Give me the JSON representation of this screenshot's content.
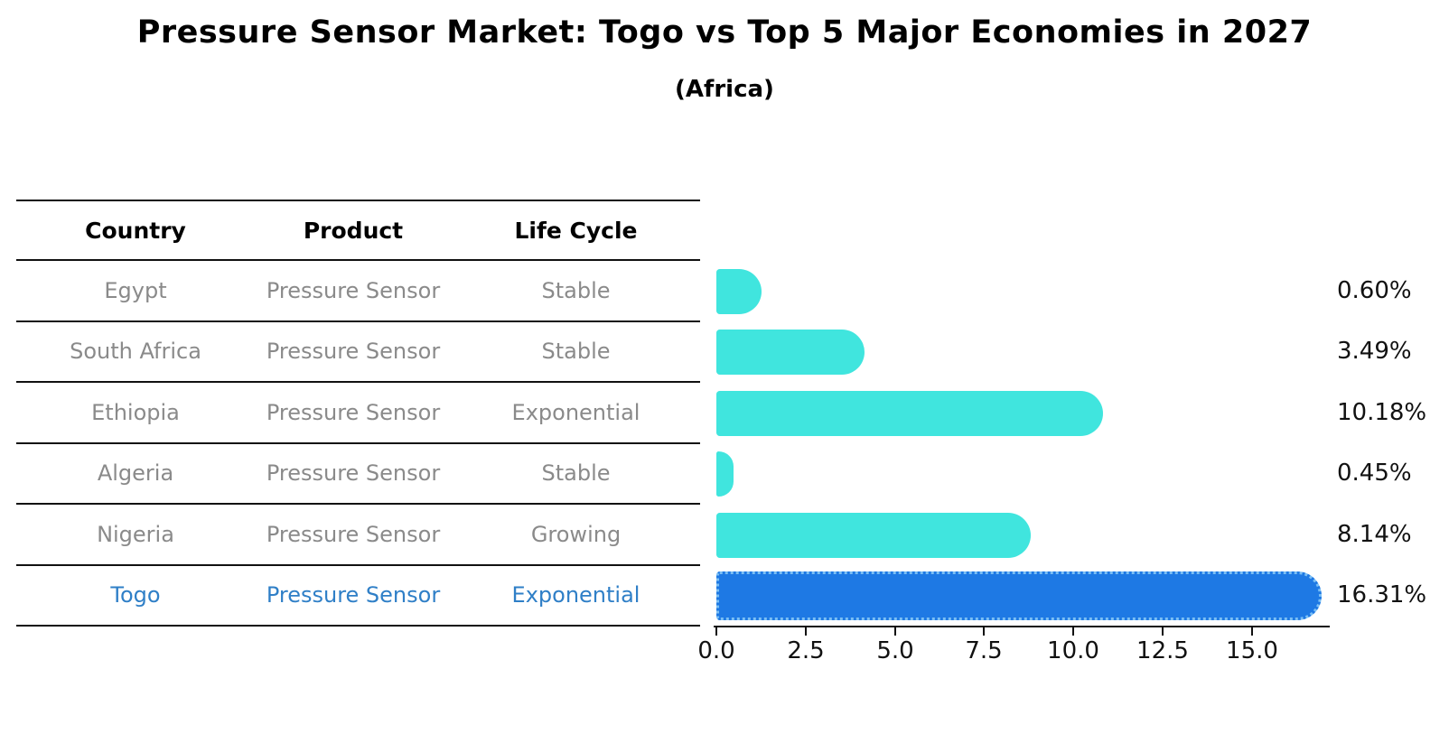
{
  "title": "Pressure Sensor Market: Togo vs Top 5 Major Economies in 2027",
  "subtitle": "(Africa)",
  "table": {
    "headers": [
      "Country",
      "Product",
      "Life Cycle"
    ],
    "rows": [
      {
        "country": "Egypt",
        "product": "Pressure Sensor",
        "life_cycle": "Stable",
        "highlighted": false
      },
      {
        "country": "South Africa",
        "product": "Pressure Sensor",
        "life_cycle": "Stable",
        "highlighted": false
      },
      {
        "country": "Ethiopia",
        "product": "Pressure Sensor",
        "life_cycle": "Exponential",
        "highlighted": false
      },
      {
        "country": "Algeria",
        "product": "Pressure Sensor",
        "life_cycle": "Stable",
        "highlighted": false
      },
      {
        "country": "Nigeria",
        "product": "Pressure Sensor",
        "life_cycle": "Growing",
        "highlighted": false
      },
      {
        "country": "Togo",
        "product": "Pressure Sensor",
        "life_cycle": "Exponential",
        "highlighted": true
      }
    ]
  },
  "chart_data": {
    "type": "bar",
    "orientation": "horizontal",
    "title": "Pressure Sensor Market: Togo vs Top 5 Major Economies in 2027",
    "subtitle": "(Africa)",
    "categories": [
      "Egypt",
      "South Africa",
      "Ethiopia",
      "Algeria",
      "Nigeria",
      "Togo"
    ],
    "values": [
      0.6,
      3.49,
      10.18,
      0.45,
      8.14,
      16.31
    ],
    "value_labels": [
      "0.60%",
      "3.49%",
      "10.18%",
      "0.45%",
      "8.14%",
      "16.31%"
    ],
    "x_ticks": [
      0,
      2.5,
      5,
      7.5,
      10,
      12.5,
      15
    ],
    "x_tick_labels": [
      "0.0",
      "2.5",
      "5.0",
      "7.5",
      "10.0",
      "12.5",
      "15.0"
    ],
    "xlim": [
      0,
      17.2
    ],
    "grid": false,
    "legend": false,
    "highlight_index": 5,
    "bar_color": "#40e5de",
    "highlight_bar_color": "#1e79e4",
    "highlight_text_color": "#2f7fc7",
    "axis_color": "#111111"
  }
}
